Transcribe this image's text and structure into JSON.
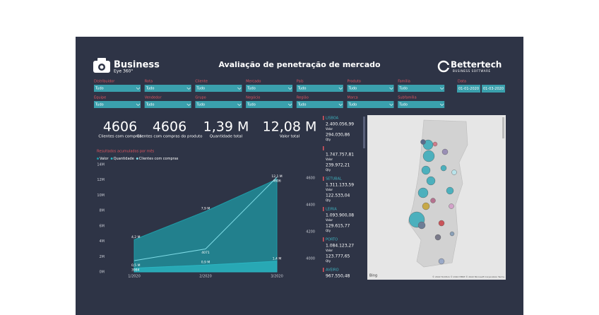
{
  "header": {
    "brand": "Business",
    "brand_sub": "Eye 360°",
    "title": "Avaliação de penetração de mercado",
    "company": "Bettertech",
    "company_sub": "BUSINESS SOFTWARE"
  },
  "filters": [
    {
      "label": "Distribuidor",
      "value": "Tudo"
    },
    {
      "label": "Rota",
      "value": "Tudo"
    },
    {
      "label": "Cliente",
      "value": "Tudo"
    },
    {
      "label": "Mercado",
      "value": "Tudo"
    },
    {
      "label": "País",
      "value": "Tudo"
    },
    {
      "label": "Produto",
      "value": "Tudo"
    },
    {
      "label": "Família",
      "value": "Tudo"
    },
    {
      "label": "Equipe",
      "value": "Tudo"
    },
    {
      "label": "Vendedor",
      "value": "Tudo"
    },
    {
      "label": "Grupo",
      "value": "Tudo"
    },
    {
      "label": "Negócio",
      "value": "Tudo"
    },
    {
      "label": "Região",
      "value": "Tudo"
    },
    {
      "label": "Marca",
      "value": "Tudo"
    },
    {
      "label": "Subfamília",
      "value": "Tudo"
    }
  ],
  "date_filter": {
    "label": "Data",
    "start": "01-01-2020",
    "end": "01-03-2020"
  },
  "kpis": [
    {
      "value": 4606,
      "label": "Clientes com compras"
    },
    {
      "value": 4606,
      "label": "Clientes com compras do produto"
    },
    {
      "value": "1,39 M",
      "label": "Quantidade total"
    },
    {
      "value": "12,08 M",
      "label": "Valor total"
    }
  ],
  "chart_data": {
    "type": "area",
    "title": "Resultados acumulados por mês",
    "categories": [
      "1/2020",
      "2/2020",
      "3/2020"
    ],
    "series": [
      {
        "name": "Valor",
        "color": "#1f9aa6",
        "values": [
          4200000,
          7900000,
          12100000
        ],
        "value_labels": [
          "4,2 M",
          "7,9 M",
          "12,1 M"
        ]
      },
      {
        "name": "Quantidade",
        "color": "#2bb5c2",
        "values": [
          500000,
          900000,
          1400000
        ],
        "value_labels": [
          "0,5 M",
          "0,9 M",
          "1,4 M"
        ]
      },
      {
        "name": "Clientes com compras",
        "color": "#7fdbe6",
        "axis": "y2",
        "values": [
          3984,
          4071,
          4606
        ]
      }
    ],
    "ylim": [
      0,
      14000000
    ],
    "yticks": [
      {
        "value": 0,
        "label": "0M"
      },
      {
        "value": 2000000,
        "label": "2M"
      },
      {
        "value": 4000000,
        "label": "4M"
      },
      {
        "value": 6000000,
        "label": "6M"
      },
      {
        "value": 8000000,
        "label": "8M"
      },
      {
        "value": 10000000,
        "label": "10M"
      },
      {
        "value": 12000000,
        "label": "12M"
      },
      {
        "value": 14000000,
        "label": "14M"
      }
    ],
    "y2lim": [
      3900,
      4700
    ],
    "y2ticks": [
      4000,
      4200,
      4400,
      4600
    ]
  },
  "regions": [
    {
      "name": "LISBOA",
      "valor": "2.400.056,99",
      "valor_label": "Valor",
      "qty": "294.030,86",
      "qty_label": "Qty"
    },
    {
      "valor": "1.747.757,81",
      "valor_label": "Valor",
      "qty": "239.972,21",
      "qty_label": "Qty"
    },
    {
      "name": "SETUBAL",
      "valor": "1.311.133,59",
      "valor_label": "Valor",
      "qty": "122.533,04",
      "qty_label": "Qty"
    },
    {
      "name": "LEIRIA",
      "valor": "1.093.900,08",
      "valor_label": "Valor",
      "qty": "129.615,77",
      "qty_label": "Qty"
    },
    {
      "name": "PORTO",
      "valor": "1.084.123,27",
      "valor_label": "Valor",
      "qty": "123.777,65",
      "qty_label": "Qty"
    },
    {
      "name": "AVEIRO",
      "valor": "967.550,48"
    }
  ],
  "map": {
    "provider": "Bing",
    "attribution": "© 2022 TomTom © 2022 HERE © 2022 Microsoft Corporation Terms"
  }
}
